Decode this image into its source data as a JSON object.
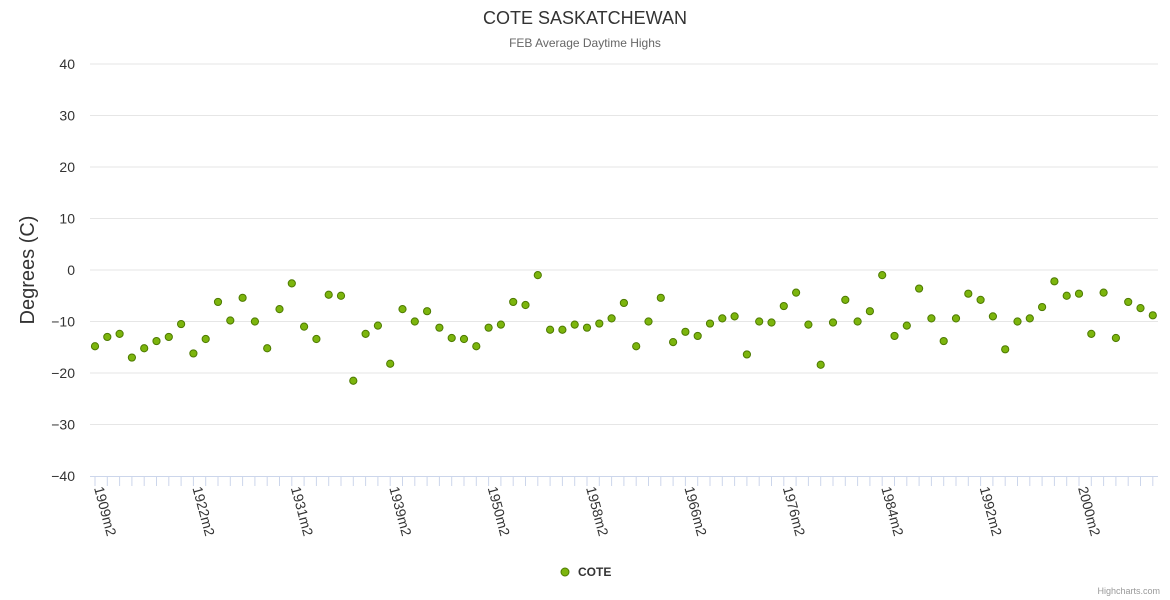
{
  "chart_data": {
    "type": "scatter",
    "title": "COTE SASKATCHEWAN",
    "subtitle": "FEB Average Daytime Highs",
    "ylabel": "Degrees (C)",
    "xlabel": "",
    "ylim": [
      -40,
      40
    ],
    "yticks": [
      "40",
      "30",
      "20",
      "10",
      "0",
      "−10",
      "−20",
      "−30",
      "−40"
    ],
    "ytick_values": [
      40,
      30,
      20,
      10,
      0,
      -10,
      -20,
      -30,
      -40
    ],
    "xtick_labels": [
      "1909m2",
      "1922m2",
      "1931m2",
      "1939m2",
      "1950m2",
      "1958m2",
      "1966m2",
      "1976m2",
      "1984m2",
      "1992m2",
      "2000m2"
    ],
    "xtick_indices": [
      0,
      8,
      16,
      24,
      32,
      40,
      48,
      56,
      64,
      72,
      80
    ],
    "grid": true,
    "legend_position": "bottom-center",
    "credits": "Highcharts.com",
    "series": [
      {
        "name": "COTE",
        "color": "#7cb50d",
        "stroke": "#4d7a00",
        "values": [
          -14.8,
          -13.0,
          -12.4,
          -17.0,
          -15.2,
          -13.8,
          -13.0,
          -10.5,
          -16.2,
          -13.4,
          -6.2,
          -9.8,
          -5.4,
          -10.0,
          -15.2,
          -7.6,
          -2.6,
          -11.0,
          -13.4,
          -4.8,
          -5.0,
          -21.5,
          -12.4,
          -10.8,
          -18.2,
          -7.6,
          -10.0,
          -8.0,
          -11.2,
          -13.2,
          -13.4,
          -14.8,
          -11.2,
          -10.6,
          -6.2,
          -6.8,
          -1.0,
          -11.6,
          -11.6,
          -10.6,
          -11.2,
          -10.4,
          -9.4,
          -6.4,
          -14.8,
          -10.0,
          -5.4,
          -14.0,
          -12.0,
          -12.8,
          -10.4,
          -9.4,
          -9.0,
          -16.4,
          -10.0,
          -10.2,
          -7.0,
          -4.4,
          -10.6,
          -18.4,
          -10.2,
          -5.8,
          -10.0,
          -8.0,
          -1.0,
          -12.8,
          -10.8,
          -3.6,
          -9.4,
          -13.8,
          -9.4,
          -4.6,
          -5.8,
          -9.0,
          -15.4,
          -10.0,
          -9.4,
          -7.2,
          -2.2,
          -5.0,
          -4.6,
          -12.4,
          -4.4,
          -13.2,
          -6.2,
          -7.4,
          -8.8
        ]
      }
    ]
  }
}
